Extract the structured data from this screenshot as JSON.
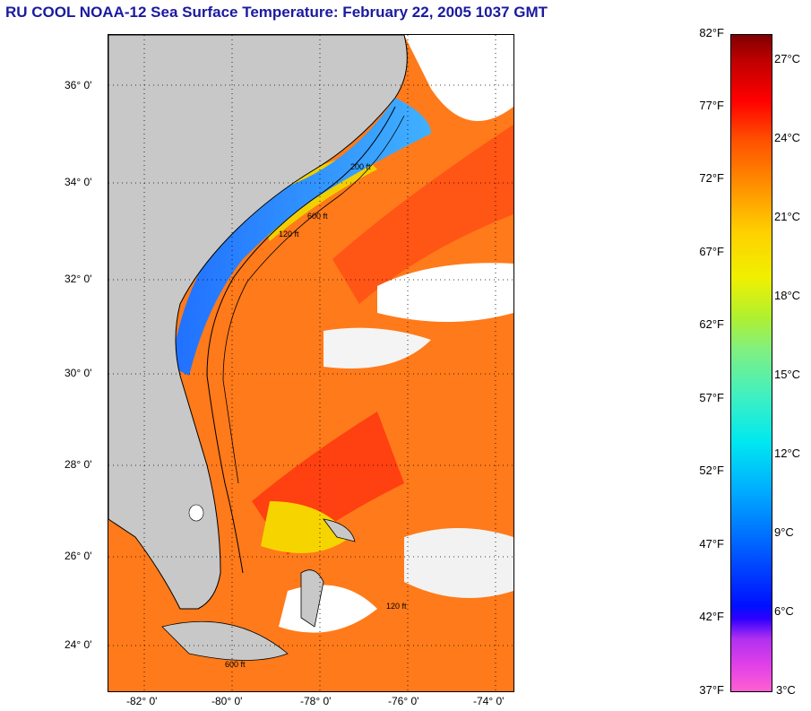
{
  "title": "RU COOL  NOAA-12  Sea Surface Temperature:  February 22, 2005 1037 GMT",
  "latitudes": [
    "36° 0'",
    "34° 0'",
    "32° 0'",
    "30° 0'",
    "28° 0'",
    "26° 0'",
    "24° 0'"
  ],
  "longitudes": [
    "-82° 0'",
    "-80° 0'",
    "-78° 0'",
    "-76° 0'",
    "-74° 0'"
  ],
  "colorbar": {
    "fahrenheit": [
      "82°F",
      "77°F",
      "72°F",
      "67°F",
      "62°F",
      "57°F",
      "52°F",
      "47°F",
      "42°F",
      "37°F"
    ],
    "celsius": [
      "27°C",
      "24°C",
      "21°C",
      "18°C",
      "15°C",
      "12°C",
      "9°C",
      "6°C",
      "3°C"
    ]
  },
  "contour_labels": [
    "200 ft",
    "600 ft",
    "120 ft",
    "120 ft",
    "600 ft"
  ],
  "colors": {
    "land": "#c8c8c8",
    "title": "#1a1aa0",
    "cloud": "#ffffff"
  }
}
